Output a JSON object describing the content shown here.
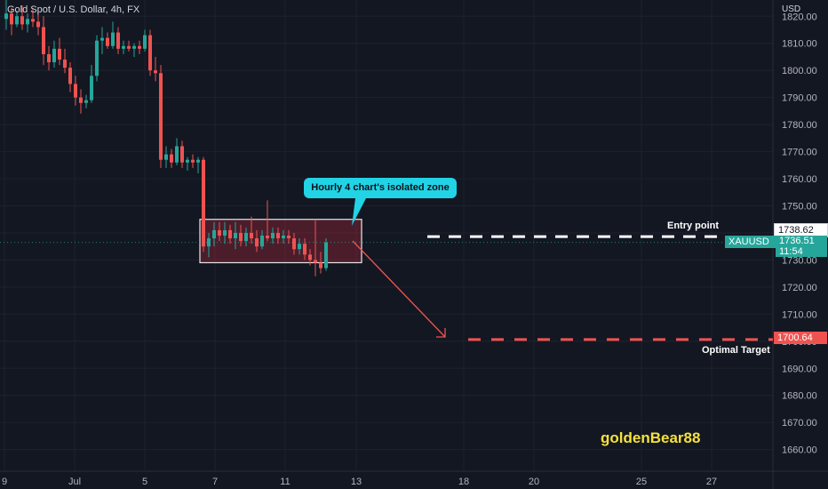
{
  "header": {
    "title": "Gold Spot / U.S. Dollar, 4h, FX",
    "currency": "USD"
  },
  "chart_data": {
    "type": "candlestick",
    "ylim": [
      1652,
      1826
    ],
    "y_ticks": [
      1820,
      1810,
      1800,
      1790,
      1780,
      1770,
      1760,
      1750,
      1740,
      1730,
      1720,
      1710,
      1700,
      1690,
      1680,
      1670,
      1660
    ],
    "x_ticks": [
      "9",
      "Jul",
      "5",
      "7",
      "11",
      "13",
      "18",
      "20",
      "25",
      "27"
    ],
    "candles": [
      {
        "o": 1819,
        "h": 1826,
        "l": 1815,
        "c": 1821
      },
      {
        "o": 1821,
        "h": 1823,
        "l": 1813,
        "c": 1817
      },
      {
        "o": 1817,
        "h": 1822,
        "l": 1816,
        "c": 1820
      },
      {
        "o": 1820,
        "h": 1824,
        "l": 1815,
        "c": 1817
      },
      {
        "o": 1817,
        "h": 1821,
        "l": 1814,
        "c": 1819
      },
      {
        "o": 1819,
        "h": 1823,
        "l": 1816,
        "c": 1818
      },
      {
        "o": 1818,
        "h": 1821,
        "l": 1813,
        "c": 1816
      },
      {
        "o": 1816,
        "h": 1820,
        "l": 1802,
        "c": 1806
      },
      {
        "o": 1806,
        "h": 1809,
        "l": 1800,
        "c": 1803
      },
      {
        "o": 1803,
        "h": 1811,
        "l": 1801,
        "c": 1808
      },
      {
        "o": 1808,
        "h": 1812,
        "l": 1802,
        "c": 1804
      },
      {
        "o": 1804,
        "h": 1808,
        "l": 1799,
        "c": 1801
      },
      {
        "o": 1801,
        "h": 1803,
        "l": 1792,
        "c": 1795
      },
      {
        "o": 1795,
        "h": 1798,
        "l": 1787,
        "c": 1790
      },
      {
        "o": 1790,
        "h": 1793,
        "l": 1784,
        "c": 1788
      },
      {
        "o": 1788,
        "h": 1791,
        "l": 1786,
        "c": 1789
      },
      {
        "o": 1789,
        "h": 1802,
        "l": 1788,
        "c": 1798
      },
      {
        "o": 1798,
        "h": 1813,
        "l": 1796,
        "c": 1811
      },
      {
        "o": 1811,
        "h": 1816,
        "l": 1806,
        "c": 1812
      },
      {
        "o": 1812,
        "h": 1814,
        "l": 1808,
        "c": 1809
      },
      {
        "o": 1809,
        "h": 1818,
        "l": 1808,
        "c": 1814
      },
      {
        "o": 1814,
        "h": 1816,
        "l": 1806,
        "c": 1808
      },
      {
        "o": 1808,
        "h": 1811,
        "l": 1806,
        "c": 1809
      },
      {
        "o": 1809,
        "h": 1811,
        "l": 1807,
        "c": 1808
      },
      {
        "o": 1808,
        "h": 1810,
        "l": 1805,
        "c": 1809
      },
      {
        "o": 1809,
        "h": 1811,
        "l": 1806,
        "c": 1808
      },
      {
        "o": 1808,
        "h": 1815,
        "l": 1807,
        "c": 1813
      },
      {
        "o": 1813,
        "h": 1815,
        "l": 1798,
        "c": 1800
      },
      {
        "o": 1800,
        "h": 1805,
        "l": 1796,
        "c": 1799
      },
      {
        "o": 1799,
        "h": 1802,
        "l": 1764,
        "c": 1767
      },
      {
        "o": 1767,
        "h": 1772,
        "l": 1764,
        "c": 1769
      },
      {
        "o": 1769,
        "h": 1771,
        "l": 1764,
        "c": 1766
      },
      {
        "o": 1766,
        "h": 1775,
        "l": 1765,
        "c": 1772
      },
      {
        "o": 1772,
        "h": 1774,
        "l": 1764,
        "c": 1766
      },
      {
        "o": 1766,
        "h": 1768,
        "l": 1763,
        "c": 1767
      },
      {
        "o": 1767,
        "h": 1769,
        "l": 1764,
        "c": 1766
      },
      {
        "o": 1766,
        "h": 1768,
        "l": 1762,
        "c": 1767
      },
      {
        "o": 1767,
        "h": 1768,
        "l": 1733,
        "c": 1735
      },
      {
        "o": 1735,
        "h": 1740,
        "l": 1731,
        "c": 1738
      },
      {
        "o": 1738,
        "h": 1744,
        "l": 1735,
        "c": 1741
      },
      {
        "o": 1741,
        "h": 1744,
        "l": 1737,
        "c": 1739
      },
      {
        "o": 1739,
        "h": 1744,
        "l": 1736,
        "c": 1741
      },
      {
        "o": 1741,
        "h": 1743,
        "l": 1736,
        "c": 1738
      },
      {
        "o": 1738,
        "h": 1744,
        "l": 1734,
        "c": 1740
      },
      {
        "o": 1740,
        "h": 1743,
        "l": 1735,
        "c": 1737
      },
      {
        "o": 1737,
        "h": 1742,
        "l": 1735,
        "c": 1740
      },
      {
        "o": 1740,
        "h": 1746,
        "l": 1736,
        "c": 1738
      },
      {
        "o": 1738,
        "h": 1741,
        "l": 1733,
        "c": 1735
      },
      {
        "o": 1735,
        "h": 1741,
        "l": 1734,
        "c": 1739
      },
      {
        "o": 1739,
        "h": 1752,
        "l": 1737,
        "c": 1738
      },
      {
        "o": 1738,
        "h": 1742,
        "l": 1736,
        "c": 1740
      },
      {
        "o": 1740,
        "h": 1742,
        "l": 1736,
        "c": 1738
      },
      {
        "o": 1738,
        "h": 1741,
        "l": 1736,
        "c": 1739
      },
      {
        "o": 1739,
        "h": 1741,
        "l": 1736,
        "c": 1738
      },
      {
        "o": 1738,
        "h": 1740,
        "l": 1732,
        "c": 1734
      },
      {
        "o": 1734,
        "h": 1738,
        "l": 1732,
        "c": 1736
      },
      {
        "o": 1736,
        "h": 1738,
        "l": 1730,
        "c": 1732
      },
      {
        "o": 1732,
        "h": 1734,
        "l": 1728,
        "c": 1730
      },
      {
        "o": 1730,
        "h": 1745,
        "l": 1724,
        "c": 1729
      },
      {
        "o": 1729,
        "h": 1733,
        "l": 1725,
        "c": 1727
      },
      {
        "o": 1727,
        "h": 1738,
        "l": 1726,
        "c": 1736.51
      }
    ],
    "zone": {
      "x_start": 37,
      "x_end": 66,
      "y_low": 1729,
      "y_high": 1745
    },
    "entry": {
      "price": 1738.62,
      "label": "Entry point"
    },
    "target": {
      "price": 1700.64,
      "label": "Optimal Target"
    },
    "current": {
      "symbol": "XAUUSD",
      "price": "1736.51",
      "countdown": "11:54"
    },
    "callout": "Hourly 4 chart's isolated zone",
    "watermark": "goldenBear88",
    "colors": {
      "up": "#26a69a",
      "down": "#ef5350",
      "background": "#131722",
      "grid": "#1e2230",
      "callout": "#22d3e6",
      "watermark": "#f5e13c"
    }
  }
}
